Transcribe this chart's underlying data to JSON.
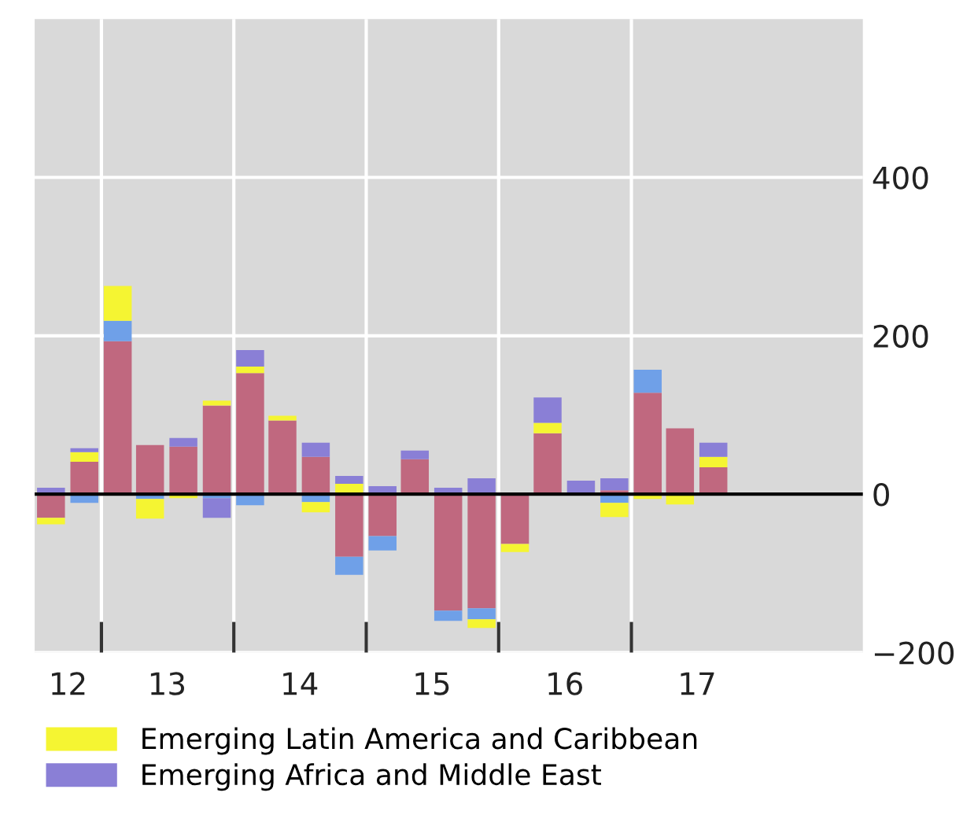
{
  "chart_data": {
    "type": "bar",
    "stacked": true,
    "x": [
      "2012-08-15",
      "2012-11-15",
      "2013-02-15",
      "2013-05-15",
      "2013-08-15",
      "2013-11-15",
      "2014-02-15",
      "2014-05-15",
      "2014-08-15",
      "2014-11-15",
      "2015-02-15",
      "2015-05-15",
      "2015-08-15",
      "2015-11-15",
      "2016-02-15",
      "2016-05-15",
      "2016-08-15",
      "2016-11-15",
      "2017-02-15",
      "2017-05-15",
      "2017-08-15"
    ],
    "series": [
      {
        "color": "#c0687f",
        "values": [
          -30,
          41,
          193,
          62,
          60,
          112,
          153,
          93,
          47,
          -79,
          -53,
          44,
          -147,
          -144,
          -63,
          77,
          0,
          5,
          128,
          83,
          34
        ]
      },
      {
        "color": "#6fa0e8",
        "values": [
          0,
          -11,
          26,
          -6,
          0,
          -5,
          -14,
          0,
          -10,
          -23,
          -18,
          0,
          -13,
          -14,
          0,
          0,
          0,
          -11,
          29,
          0,
          0
        ]
      },
      {
        "name": "Emerging Latin America and Caribbean",
        "color": "#f5f532",
        "values": [
          -8,
          12,
          44,
          -25,
          -5,
          6,
          8,
          6,
          -13,
          13,
          0,
          0,
          0,
          -11,
          -10,
          13,
          0,
          -18,
          -6,
          -13,
          13
        ]
      },
      {
        "name": "Emerging Africa and Middle East",
        "color": "#8a7fd6",
        "values": [
          8,
          5,
          0,
          0,
          11,
          -25,
          21,
          0,
          18,
          10,
          10,
          11,
          8,
          20,
          0,
          32,
          17,
          15,
          0,
          0,
          18
        ]
      }
    ],
    "xlim": [
      "2012-07-01",
      "2018-10-01"
    ],
    "xticks": [
      {
        "value": "2012-10-01",
        "label": "12"
      },
      {
        "value": "2013-01-01",
        "label": null
      },
      {
        "value": "2013-07-01",
        "label": "13"
      },
      {
        "value": "2014-01-01",
        "label": null
      },
      {
        "value": "2014-07-01",
        "label": "14"
      },
      {
        "value": "2015-01-01",
        "label": null
      },
      {
        "value": "2015-07-01",
        "label": "15"
      },
      {
        "value": "2016-01-01",
        "label": null
      },
      {
        "value": "2016-07-01",
        "label": "16"
      },
      {
        "value": "2017-01-01",
        "label": null
      },
      {
        "value": "2017-07-01",
        "label": "17"
      }
    ],
    "ylim": [
      -200,
      600
    ],
    "yticks": [
      {
        "value": -200,
        "label": "−200"
      },
      0,
      200,
      400
    ],
    "ref_lines": [
      {
        "axis": "y",
        "value": 0,
        "color": "#000000"
      }
    ],
    "grid": true,
    "legend": "bottom left"
  }
}
